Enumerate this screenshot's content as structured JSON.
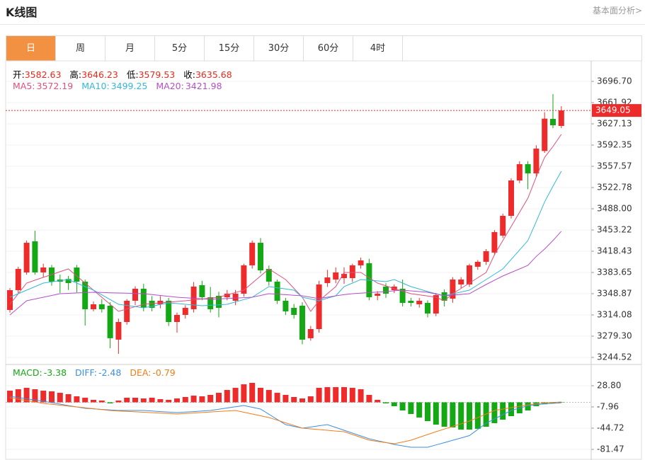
{
  "header": {
    "title": "K线图",
    "link": "基本面分析>"
  },
  "tabs": [
    "日",
    "周",
    "月",
    "5分",
    "15分",
    "30分",
    "60分",
    "4时"
  ],
  "active_tab": 0,
  "chart_data": [
    {
      "type": "candlestick",
      "summary": {
        "color": "#e8291c",
        "items": [
          {
            "label": "开:",
            "value": 3582.63
          },
          {
            "label": "高:",
            "value": 3646.23
          },
          {
            "label": "低:",
            "value": 3579.53
          },
          {
            "label": "收:",
            "value": 3635.68
          }
        ]
      },
      "colors": {
        "up": "#ee2b2b",
        "down": "#14a814"
      },
      "open": [
        3322.2,
        3354.7,
        3383.7,
        3434.7,
        3383.7,
        3391.8,
        3372,
        3373,
        3391.8,
        3368.6,
        3323.4,
        3331.5,
        3329.2,
        3273.6,
        3302.5,
        3337.3,
        3357,
        3337.3,
        3331.5,
        3337.3,
        3302.5,
        3314.1,
        3323.4,
        3362.8,
        3343.1,
        3345.4,
        3343.1,
        3337.3,
        3348.9,
        3395.3,
        3432.3,
        3389.5,
        3368.6,
        3337.3,
        3325.7,
        3329.2,
        3275.9,
        3290.9,
        3366.3,
        3372.1,
        3374.4,
        3374.4,
        3395.3,
        3398.8,
        3345.4,
        3360.5,
        3354.7,
        3357,
        3337.3,
        3331.5,
        3333.8,
        3316.4,
        3351.2,
        3340.8,
        3364,
        3364,
        3393,
        3401.1,
        3416.2,
        3444,
        3476.4,
        3534.4,
        3561.1,
        3546,
        3582.63,
        3635.3,
        3623.7
      ],
      "high": [
        3358,
        3393,
        3436,
        3452,
        3398,
        3396,
        3380,
        3378,
        3396,
        3372,
        3336,
        3340,
        3335,
        3308,
        3340,
        3361,
        3365,
        3345,
        3345,
        3342,
        3318,
        3330,
        3368,
        3370,
        3360,
        3352,
        3355,
        3355,
        3398,
        3436,
        3440,
        3395,
        3372,
        3342,
        3332,
        3335,
        3296,
        3370,
        3388,
        3392,
        3392,
        3398,
        3408,
        3406,
        3353,
        3366,
        3364,
        3372,
        3342,
        3342,
        3338,
        3350,
        3356,
        3376,
        3376,
        3398,
        3404,
        3422,
        3453,
        3480,
        3538,
        3566,
        3566,
        3592,
        3646.23,
        3675.8,
        3656
      ],
      "low": [
        3318,
        3350,
        3380,
        3380,
        3376,
        3362,
        3350,
        3355,
        3351,
        3296.7,
        3320,
        3318,
        3259.6,
        3250.4,
        3298,
        3330,
        3320,
        3320,
        3325,
        3296,
        3285,
        3308,
        3318,
        3338,
        3318,
        3310,
        3338,
        3330,
        3344,
        3390,
        3382,
        3362,
        3332,
        3314,
        3308,
        3266,
        3272,
        3285,
        3360,
        3366,
        3365,
        3368,
        3390,
        3338,
        3338,
        3342,
        3350,
        3328,
        3328,
        3326,
        3310,
        3312,
        3328,
        3334,
        3358,
        3360,
        3388,
        3396,
        3412,
        3440,
        3472,
        3530,
        3520,
        3540,
        3579.53,
        3620,
        3620
      ],
      "close": [
        3354.7,
        3389.5,
        3432.3,
        3383.7,
        3391.8,
        3368.6,
        3368.6,
        3366.3,
        3368.6,
        3323.4,
        3331.5,
        3323.4,
        3275.9,
        3302.5,
        3337.3,
        3357,
        3325.7,
        3325.7,
        3337.3,
        3302.5,
        3314.1,
        3325.7,
        3360.5,
        3343.1,
        3323.4,
        3325.7,
        3348.9,
        3348.9,
        3395.3,
        3432.3,
        3387.1,
        3368.6,
        3337.3,
        3319.9,
        3314.1,
        3273.6,
        3290.9,
        3364,
        3375.5,
        3383.7,
        3381.3,
        3395.3,
        3403.4,
        3343.1,
        3348.9,
        3348.9,
        3360.5,
        3333.8,
        3333.8,
        3337.3,
        3316.4,
        3346.5,
        3337.3,
        3372.1,
        3372.1,
        3395.3,
        3401.1,
        3418.5,
        3449.8,
        3476.4,
        3534.4,
        3561.1,
        3546,
        3586.6,
        3635.68,
        3624.8,
        3649.1
      ],
      "series": [
        {
          "name": "MA5:",
          "color": "#e0507c",
          "legend_value": 3572.19,
          "values": [
            3331.5,
            3348.9,
            3366.3,
            3371,
            3375.6,
            3380.2,
            3384.9,
            3389.5,
            3377.9,
            3366.3,
            3354.7,
            3343.1,
            3331.5,
            3319.9,
            3323.8,
            3327.6,
            3331.5,
            3332.7,
            3333.8,
            3335,
            3336.1,
            3337.3,
            3338.8,
            3340.2,
            3341.7,
            3343.1,
            3347,
            3350.8,
            3354.7,
            3366.3,
            3377.9,
            3389.5,
            3380.8,
            3372.1,
            3357.6,
            3343.1,
            3319.9,
            3337.3,
            3348.9,
            3360.5,
            3383.7,
            3383.7,
            3383.7,
            3375,
            3366.3,
            3361.7,
            3357,
            3353,
            3348.9,
            3347,
            3345,
            3343.1,
            3337.3,
            3348.9,
            3357.6,
            3366.3,
            3375,
            3383.7,
            3412.7,
            3435.9,
            3459,
            3482.2,
            3505.4,
            3540.2,
            3572.19,
            3590,
            3609.8
          ]
        },
        {
          "name": "MA10:",
          "color": "#32b8d8",
          "legend_value": 3499.25,
          "values": [
            3343.1,
            3348.9,
            3354.7,
            3360.5,
            3366.3,
            3368.2,
            3370.2,
            3372.1,
            3366.3,
            3360.5,
            3354.7,
            3347,
            3339.2,
            3331.5,
            3329.6,
            3327.6,
            3325.7,
            3328.4,
            3331.1,
            3333.8,
            3332.7,
            3331.5,
            3330.4,
            3329.2,
            3330,
            3330.7,
            3331.5,
            3335.4,
            3339.2,
            3343.1,
            3351.8,
            3360.5,
            3358.6,
            3356.6,
            3354.7,
            3343.1,
            3340.2,
            3337.3,
            3341.4,
            3345.4,
            3360.5,
            3366.3,
            3372.1,
            3370.9,
            3369.8,
            3368.6,
            3372.1,
            3366.3,
            3360.5,
            3356.5,
            3352.4,
            3348.9,
            3345.4,
            3348.5,
            3351.6,
            3354.7,
            3363.4,
            3372.1,
            3380.8,
            3389.5,
            3405,
            3420.4,
            3435.9,
            3467,
            3499.25,
            3525,
            3549.5
          ]
        },
        {
          "name": "MA20:",
          "color": "#b54fc7",
          "legend_value": 3421.98,
          "values": [
            3314.1,
            3325.7,
            3337.3,
            3340.2,
            3343.1,
            3346,
            3348.9,
            3349.5,
            3350.1,
            3350.6,
            3351.2,
            3350.8,
            3350.4,
            3350,
            3349.7,
            3349.3,
            3348.9,
            3347.5,
            3346,
            3344.6,
            3343.1,
            3342.2,
            3341.4,
            3340.5,
            3339.6,
            3340.3,
            3341,
            3341.7,
            3342.4,
            3343.1,
            3346,
            3348.9,
            3348,
            3347.2,
            3346.3,
            3345.4,
            3343.1,
            3340.8,
            3343.1,
            3345.4,
            3347.2,
            3348.9,
            3349.8,
            3350.7,
            3351.5,
            3352.4,
            3353.6,
            3354.7,
            3353.5,
            3352.4,
            3351.2,
            3348.3,
            3345.4,
            3346.6,
            3347.7,
            3348.9,
            3356.5,
            3364,
            3371,
            3377.9,
            3383.7,
            3389.5,
            3395.3,
            3410,
            3421.98,
            3436,
            3451.1
          ]
        }
      ],
      "last_price": 3649.05,
      "last_price_color": "#ee2b2b",
      "ylim": [
        3232.93,
        3728.0
      ],
      "yticks": [
        {
          "value": 3696.7,
          "label": "3696.70"
        },
        3661.92,
        3627.13,
        3592.35,
        3557.57,
        3522.78,
        {
          "value": 3488.0,
          "label": "3488.00"
        },
        3453.22,
        3418.43,
        3383.65,
        3348.87,
        3314.08,
        {
          "value": 3279.3,
          "label": "3279.30"
        },
        3244.52
      ],
      "grid": true
    },
    {
      "type": "macd",
      "name": "MACD:",
      "color": "#14a814",
      "legend_value": -3.38,
      "colors": {
        "up": "#ee2b2b",
        "down": "#14a814"
      },
      "values": [
        20.2,
        22.7,
        25.1,
        22.7,
        20.2,
        19.0,
        16.5,
        14.1,
        10.4,
        8.0,
        4.3,
        3.1,
        -1.8,
        3.1,
        8.0,
        8.0,
        6.7,
        8.0,
        5.5,
        4.3,
        6.7,
        9.2,
        11.6,
        10.4,
        12.9,
        16.5,
        21.4,
        25.1,
        31.2,
        33.7,
        25.1,
        21.4,
        16.5,
        12.9,
        9.2,
        6.7,
        10.4,
        25.1,
        26.3,
        26.3,
        26.3,
        25.1,
        22.7,
        12.9,
        4.3,
        -1.8,
        -6.7,
        -14.1,
        -20.2,
        -26.3,
        -32.5,
        -38.6,
        -42.3,
        -43.5,
        -47.2,
        -47.2,
        -45.9,
        -42.3,
        -36.1,
        -30.0,
        -23.9,
        -19.0,
        -14.1,
        -6.7,
        -3.38,
        -1.8,
        -0.6
      ],
      "series": [
        {
          "name": "DIFF:",
          "color": "#3d8fe0",
          "legend_value": -2.48,
          "values": [
            10.4,
            8.3,
            6.1,
            4,
            1.8,
            -0.6,
            -3,
            -5.6,
            -8,
            -10.4,
            -11.3,
            -12.3,
            -13.2,
            -14.1,
            -14.1,
            -14.1,
            -14.1,
            -15,
            -16,
            -16.9,
            -17.8,
            -16.9,
            -16,
            -15,
            -14.1,
            -12,
            -9.8,
            -7.7,
            -5.5,
            -8.6,
            -11.6,
            -20.6,
            -29.6,
            -38.6,
            -41.7,
            -44.7,
            -42.7,
            -40.6,
            -38.6,
            -43.5,
            -48.4,
            -53.3,
            -58.2,
            -63.1,
            -66.4,
            -69.6,
            -72.9,
            -75.4,
            -77.8,
            -77.8,
            -77.8,
            -73.8,
            -69.8,
            -65.7,
            -61.7,
            -57.6,
            -46.9,
            -36.1,
            -28.8,
            -21.4,
            -14.1,
            -10,
            -6,
            -4.2,
            -2.48,
            -1.7,
            -1.0
          ]
        },
        {
          "name": "DEA:",
          "color": "#f07d1a",
          "legend_value": -0.79,
          "values": [
            8,
            5.5,
            3.1,
            0.7,
            -1.8,
            -3.3,
            -4.9,
            -6.4,
            -8,
            -9.5,
            -11,
            -12.6,
            -14.1,
            -14.9,
            -15.6,
            -16.4,
            -17.2,
            -17.9,
            -18.7,
            -19.4,
            -20.2,
            -19.3,
            -18.5,
            -17.6,
            -16.7,
            -15.8,
            -15,
            -14.1,
            -17.2,
            -20.2,
            -23.3,
            -26.3,
            -30.9,
            -35.5,
            -40.1,
            -44.7,
            -45.9,
            -47.2,
            -48.4,
            -49.7,
            -50.9,
            -55.8,
            -60.7,
            -65.6,
            -67.6,
            -69.7,
            -71.7,
            -68.7,
            -65.6,
            -60.7,
            -55.8,
            -50.9,
            -46.3,
            -41.7,
            -37.1,
            -32.5,
            -26.4,
            -20.2,
            -14.1,
            -11.7,
            -9.2,
            -6.8,
            -4.3,
            -2.5,
            -0.79,
            -0.1,
            0.6
          ]
        }
      ],
      "ylim": [
        -99.85,
        65.56
      ],
      "yticks": [
        {
          "value": 28.8,
          "label": "28.80"
        },
        -7.96,
        -44.72,
        -81.47
      ],
      "grid": true
    }
  ]
}
